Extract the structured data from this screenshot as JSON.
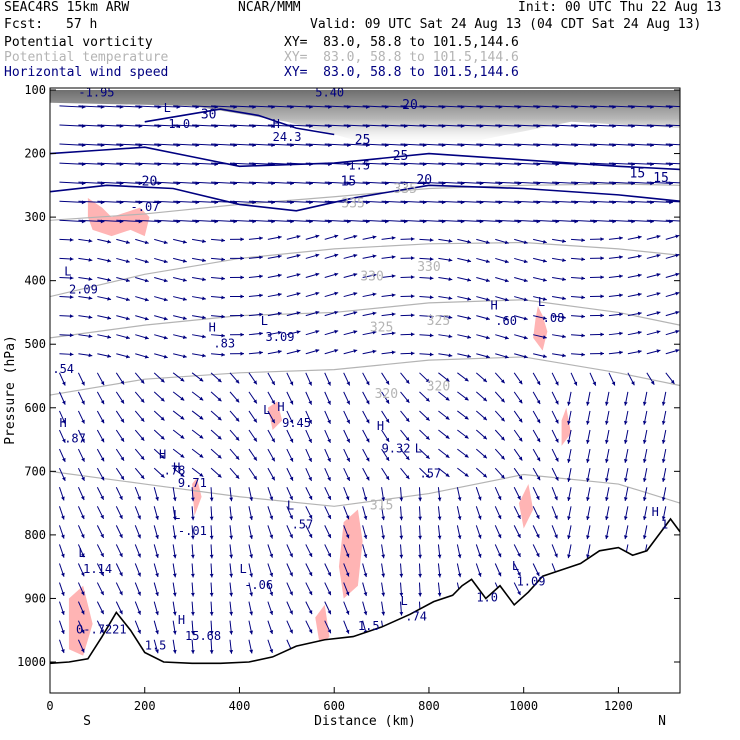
{
  "header": {
    "model": "SEAC4RS 15km ARW",
    "org": "NCAR/MMM",
    "init": "Init: 00 UTC Thu 22 Aug 13",
    "fcst_label": "Fcst:",
    "fcst_value": "57 h",
    "valid": "Valid: 09 UTC Sat 24 Aug 13 (04 CDT Sat 24 Aug 13)",
    "fields": [
      {
        "name": "Potential vorticity",
        "xy": "XY=  83.0, 58.8 to 101.5,144.6",
        "color": "#000000"
      },
      {
        "name": "Potential temperature",
        "xy": "XY=  83.0, 58.8 to 101.5,144.6",
        "color": "#b4b4b4"
      },
      {
        "name": "Horizontal wind speed",
        "xy": "XY=  83.0, 58.8 to 101.5,144.6",
        "color": "#000080"
      }
    ]
  },
  "chart_data": {
    "type": "cross-section",
    "xlabel": "Distance (km)",
    "ylabel": "Pressure (hPa)",
    "xlim": [
      0,
      1330
    ],
    "ylim": [
      1050,
      100
    ],
    "x_ticks": [
      "0",
      "200",
      "400",
      "600",
      "800",
      "1000",
      "1200"
    ],
    "y_ticks": [
      "100",
      "200",
      "300",
      "400",
      "500",
      "600",
      "700",
      "800",
      "900",
      "1000"
    ],
    "end_labels": {
      "left": "S",
      "right": "N"
    },
    "colors": {
      "theta": "#b4b4b4",
      "wind_speed": "#000080",
      "wind_vectors": "#000080",
      "pv_positive": "#ffb4b4",
      "pv_contour": "#5a0032",
      "terrain": "#000000"
    },
    "terrain": [
      {
        "x": 0,
        "p": 1002
      },
      {
        "x": 40,
        "p": 1000
      },
      {
        "x": 80,
        "p": 995
      },
      {
        "x": 110,
        "p": 960
      },
      {
        "x": 140,
        "p": 922
      },
      {
        "x": 170,
        "p": 950
      },
      {
        "x": 200,
        "p": 985
      },
      {
        "x": 240,
        "p": 1000
      },
      {
        "x": 300,
        "p": 1002
      },
      {
        "x": 360,
        "p": 1002
      },
      {
        "x": 420,
        "p": 1000
      },
      {
        "x": 470,
        "p": 992
      },
      {
        "x": 520,
        "p": 975
      },
      {
        "x": 580,
        "p": 965
      },
      {
        "x": 640,
        "p": 960
      },
      {
        "x": 700,
        "p": 945
      },
      {
        "x": 760,
        "p": 925
      },
      {
        "x": 810,
        "p": 905
      },
      {
        "x": 850,
        "p": 895
      },
      {
        "x": 870,
        "p": 880
      },
      {
        "x": 890,
        "p": 870
      },
      {
        "x": 920,
        "p": 900
      },
      {
        "x": 950,
        "p": 880
      },
      {
        "x": 980,
        "p": 910
      },
      {
        "x": 1010,
        "p": 890
      },
      {
        "x": 1040,
        "p": 865
      },
      {
        "x": 1080,
        "p": 855
      },
      {
        "x": 1120,
        "p": 845
      },
      {
        "x": 1160,
        "p": 825
      },
      {
        "x": 1200,
        "p": 820
      },
      {
        "x": 1230,
        "p": 832
      },
      {
        "x": 1260,
        "p": 825
      },
      {
        "x": 1290,
        "p": 795
      },
      {
        "x": 1310,
        "p": 775
      },
      {
        "x": 1330,
        "p": 795
      }
    ],
    "theta_contours": [
      {
        "value": 335,
        "points": [
          [
            0,
            305
          ],
          [
            200,
            295
          ],
          [
            400,
            280
          ],
          [
            600,
            268
          ],
          [
            800,
            255
          ],
          [
            1000,
            250
          ],
          [
            1200,
            248
          ],
          [
            1330,
            250
          ]
        ]
      },
      {
        "value": 330,
        "points": [
          [
            0,
            425
          ],
          [
            200,
            390
          ],
          [
            400,
            365
          ],
          [
            600,
            350
          ],
          [
            800,
            342
          ],
          [
            1000,
            340
          ],
          [
            1200,
            350
          ],
          [
            1330,
            360
          ]
        ]
      },
      {
        "value": 325,
        "points": [
          [
            0,
            490
          ],
          [
            200,
            470
          ],
          [
            400,
            455
          ],
          [
            600,
            450
          ],
          [
            800,
            435
          ],
          [
            1000,
            430
          ],
          [
            1200,
            450
          ],
          [
            1330,
            470
          ]
        ]
      },
      {
        "value": 320,
        "points": [
          [
            0,
            580
          ],
          [
            200,
            555
          ],
          [
            400,
            545
          ],
          [
            600,
            540
          ],
          [
            800,
            525
          ],
          [
            1000,
            520
          ],
          [
            1200,
            545
          ],
          [
            1330,
            565
          ]
        ]
      },
      {
        "value": 315,
        "points": [
          [
            0,
            700
          ],
          [
            200,
            720
          ],
          [
            400,
            740
          ],
          [
            600,
            755
          ],
          [
            800,
            735
          ],
          [
            1000,
            705
          ],
          [
            1200,
            720
          ],
          [
            1330,
            750
          ]
        ]
      }
    ],
    "theta_labels": [
      {
        "text": "335",
        "x": 640,
        "p": 285
      },
      {
        "text": "335",
        "x": 750,
        "p": 262
      },
      {
        "text": "330",
        "x": 680,
        "p": 400
      },
      {
        "text": "330",
        "x": 800,
        "p": 385
      },
      {
        "text": "325",
        "x": 700,
        "p": 480
      },
      {
        "text": "325",
        "x": 820,
        "p": 470
      },
      {
        "text": "320",
        "x": 710,
        "p": 585
      },
      {
        "text": "320",
        "x": 820,
        "p": 573
      },
      {
        "text": "315",
        "x": 700,
        "p": 760
      }
    ],
    "wind_speed_contours": [
      {
        "value": 20,
        "points": [
          [
            0,
            260
          ],
          [
            120,
            250
          ],
          [
            260,
            255
          ],
          [
            400,
            280
          ],
          [
            520,
            290
          ],
          [
            640,
            270
          ],
          [
            800,
            250
          ],
          [
            1000,
            255
          ],
          [
            1200,
            265
          ],
          [
            1330,
            275
          ]
        ]
      },
      {
        "value": 25,
        "points": [
          [
            0,
            200
          ],
          [
            100,
            195
          ],
          [
            200,
            190
          ],
          [
            300,
            205
          ],
          [
            400,
            220
          ],
          [
            600,
            215
          ],
          [
            800,
            200
          ],
          [
            1000,
            210
          ],
          [
            1200,
            220
          ],
          [
            1330,
            225
          ]
        ]
      },
      {
        "value": 30,
        "points": [
          [
            200,
            150
          ],
          [
            280,
            140
          ],
          [
            360,
            130
          ],
          [
            440,
            140
          ],
          [
            520,
            160
          ],
          [
            600,
            170
          ]
        ]
      }
    ],
    "wind_speed_labels": [
      {
        "text": "20",
        "x": 210,
        "p": 250
      },
      {
        "text": "20",
        "x": 790,
        "p": 248
      },
      {
        "text": "25",
        "x": 660,
        "p": 185
      },
      {
        "text": "25",
        "x": 740,
        "p": 210
      },
      {
        "text": "30",
        "x": 335,
        "p": 145
      },
      {
        "text": "20",
        "x": 760,
        "p": 130
      },
      {
        "text": "15",
        "x": 630,
        "p": 250
      },
      {
        "text": "15",
        "x": 1240,
        "p": 238
      },
      {
        "text": "15",
        "x": 1290,
        "p": 245
      }
    ],
    "pv_labels": [
      {
        "text": "L",
        "x": 30,
        "p": 392
      },
      {
        "text": "2.09",
        "x": 40,
        "p": 420
      },
      {
        "text": "H",
        "x": 335,
        "p": 480
      },
      {
        "text": ".83",
        "x": 345,
        "p": 505
      },
      {
        "text": "L",
        "x": 445,
        "p": 470
      },
      {
        "text": "3.09",
        "x": 455,
        "p": 495
      },
      {
        "text": "H",
        "x": 930,
        "p": 445
      },
      {
        "text": ".60",
        "x": 940,
        "p": 470
      },
      {
        "text": "L",
        "x": 1030,
        "p": 440
      },
      {
        "text": ".08",
        "x": 1040,
        "p": 465
      },
      {
        "text": "H",
        "x": 230,
        "p": 680
      },
      {
        "text": ".78",
        "x": 240,
        "p": 705
      },
      {
        "text": "H",
        "x": 260,
        "p": 700
      },
      {
        "text": "9.71",
        "x": 270,
        "p": 725
      },
      {
        "text": "L",
        "x": 450,
        "p": 610
      },
      {
        "text": "H",
        "x": 480,
        "p": 605
      },
      {
        "text": "9.45",
        "x": 490,
        "p": 630
      },
      {
        "text": "H",
        "x": 690,
        "p": 635
      },
      {
        "text": "9.32",
        "x": 700,
        "p": 670
      },
      {
        "text": "L",
        "x": 770,
        "p": 670
      },
      {
        "text": ".57",
        "x": 780,
        "p": 710
      },
      {
        "text": "H",
        "x": 20,
        "p": 630
      },
      {
        "text": ".87",
        "x": 30,
        "p": 655
      },
      {
        "text": "L",
        "x": 260,
        "p": 775
      },
      {
        "text": "-.01",
        "x": 270,
        "p": 800
      },
      {
        "text": "L",
        "x": 500,
        "p": 760
      },
      {
        "text": ".57",
        "x": 510,
        "p": 790
      },
      {
        "text": "L",
        "x": 60,
        "p": 835
      },
      {
        "text": "1.14",
        "x": 70,
        "p": 860
      },
      {
        "text": "L",
        "x": 400,
        "p": 860
      },
      {
        "text": "-.06",
        "x": 410,
        "p": 885
      },
      {
        "text": "L",
        "x": 975,
        "p": 855
      },
      {
        "text": "1.09",
        "x": 985,
        "p": 880
      },
      {
        "text": "L",
        "x": 740,
        "p": 910
      },
      {
        "text": ".74",
        "x": 750,
        "p": 935
      },
      {
        "text": "1.0",
        "x": 900,
        "p": 905
      },
      {
        "text": "H",
        "x": 270,
        "p": 940
      },
      {
        "text": "15.68",
        "x": 285,
        "p": 965
      },
      {
        "text": "0-.7221",
        "x": 55,
        "p": 955
      },
      {
        "text": "1.5",
        "x": 200,
        "p": 980
      },
      {
        "text": "1.5",
        "x": 650,
        "p": 950
      },
      {
        "text": "L",
        "x": 240,
        "p": 135
      },
      {
        "text": "H",
        "x": 470,
        "p": 160
      },
      {
        "text": "1.0",
        "x": 250,
        "p": 160
      },
      {
        "text": "24.3",
        "x": 470,
        "p": 180
      },
      {
        "text": "-.07",
        "x": 170,
        "p": 290
      },
      {
        "text": "1.5",
        "x": 630,
        "p": 225
      },
      {
        "text": "-1.95",
        "x": 60,
        "p": 110
      },
      {
        "text": "5.40",
        "x": 560,
        "p": 110
      },
      {
        "text": ".54",
        "x": 5,
        "p": 545
      },
      {
        "text": "H",
        "x": 1270,
        "p": 770
      },
      {
        "text": "1",
        "x": 1290,
        "p": 790
      }
    ],
    "pv_shaded_regions": [
      [
        [
          80,
          270
        ],
        [
          110,
          285
        ],
        [
          130,
          300
        ],
        [
          150,
          295
        ],
        [
          170,
          290
        ],
        [
          190,
          285
        ],
        [
          210,
          300
        ],
        [
          200,
          330
        ],
        [
          170,
          320
        ],
        [
          130,
          330
        ],
        [
          90,
          320
        ],
        [
          80,
          300
        ]
      ],
      [
        [
          1030,
          440
        ],
        [
          1040,
          455
        ],
        [
          1050,
          480
        ],
        [
          1040,
          510
        ],
        [
          1020,
          490
        ],
        [
          1025,
          460
        ]
      ],
      [
        [
          1080,
          620
        ],
        [
          1090,
          600
        ],
        [
          1100,
          640
        ],
        [
          1080,
          660
        ]
      ],
      [
        [
          990,
          750
        ],
        [
          1010,
          720
        ],
        [
          1020,
          760
        ],
        [
          1000,
          790
        ]
      ],
      [
        [
          620,
          780
        ],
        [
          650,
          760
        ],
        [
          660,
          810
        ],
        [
          650,
          880
        ],
        [
          620,
          900
        ],
        [
          610,
          850
        ]
      ],
      [
        [
          300,
          720
        ],
        [
          310,
          710
        ],
        [
          320,
          740
        ],
        [
          305,
          770
        ]
      ],
      [
        [
          560,
          930
        ],
        [
          580,
          910
        ],
        [
          590,
          960
        ],
        [
          570,
          975
        ]
      ],
      [
        [
          40,
          900
        ],
        [
          70,
          880
        ],
        [
          90,
          940
        ],
        [
          70,
          990
        ],
        [
          40,
          980
        ]
      ],
      [
        [
          460,
          600
        ],
        [
          480,
          590
        ],
        [
          490,
          620
        ],
        [
          470,
          635
        ]
      ]
    ]
  }
}
